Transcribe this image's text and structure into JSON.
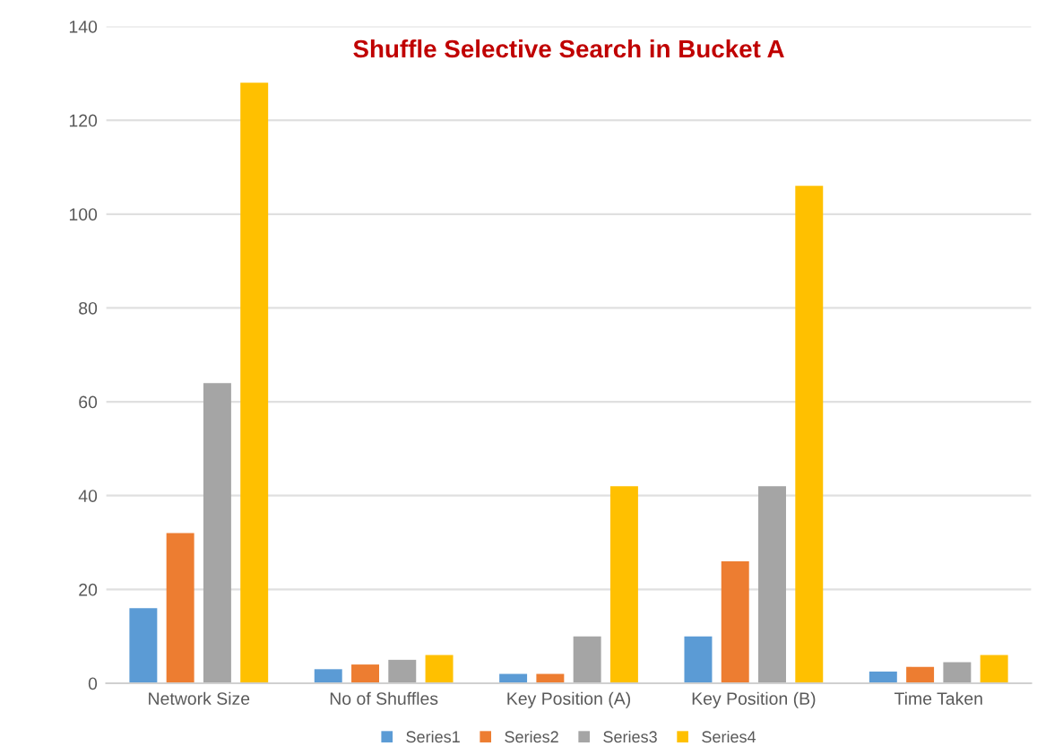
{
  "chart_data": {
    "type": "bar",
    "title": "Shuffle Selective Search in Bucket A",
    "categories": [
      "Network Size",
      "No of Shuffles",
      "Key Position (A)",
      "Key Position (B)",
      "Time Taken"
    ],
    "series": [
      {
        "name": "Series1",
        "color": "#5b9bd5",
        "values": [
          16,
          3,
          2,
          10,
          2.5
        ]
      },
      {
        "name": "Series2",
        "color": "#ed7d31",
        "values": [
          32,
          4,
          2,
          26,
          3.5
        ]
      },
      {
        "name": "Series3",
        "color": "#a5a5a5",
        "values": [
          64,
          5,
          10,
          42,
          4.5
        ]
      },
      {
        "name": "Series4",
        "color": "#ffc000",
        "values": [
          128,
          6,
          42,
          106,
          6
        ]
      }
    ],
    "ylim": [
      0,
      140
    ],
    "yticks": [
      0,
      20,
      40,
      60,
      80,
      100,
      120,
      140
    ],
    "grid": "y",
    "legend": "bottom"
  }
}
